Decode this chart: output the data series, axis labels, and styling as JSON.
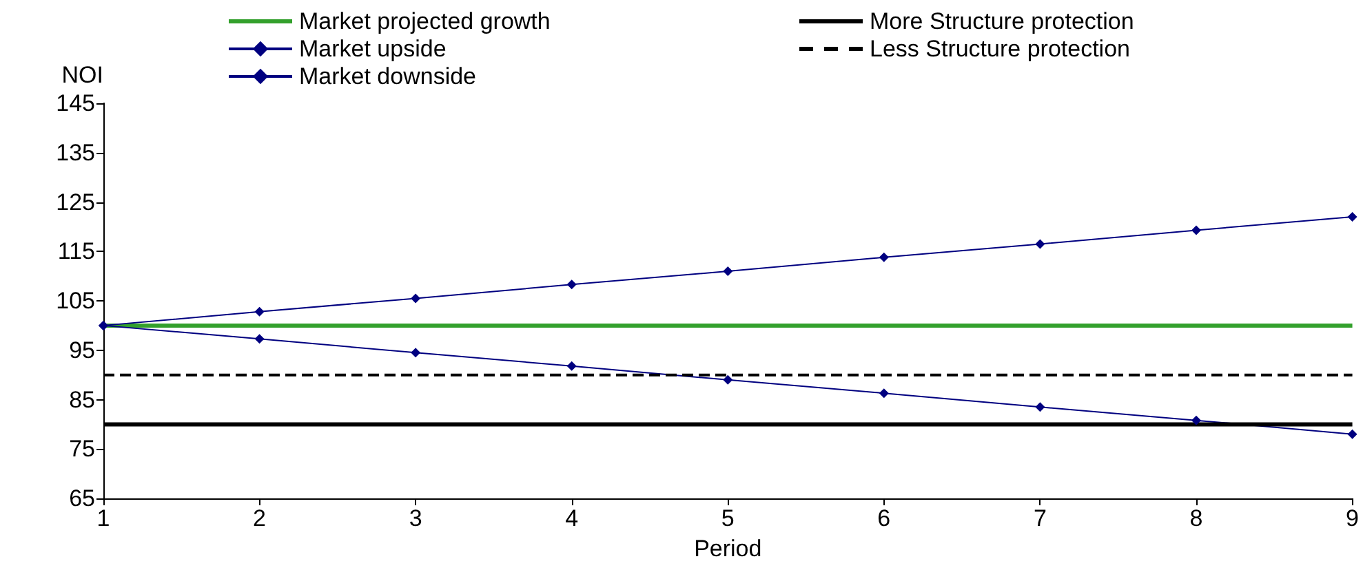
{
  "chart_data": {
    "type": "line",
    "xlabel": "Period",
    "ylabel": "NOI",
    "x": [
      1,
      2,
      3,
      4,
      5,
      6,
      7,
      8,
      9
    ],
    "series": [
      {
        "name": "Market projected growth",
        "color": "#33a02c",
        "values": [
          100,
          100,
          100,
          100,
          100,
          100,
          100,
          100,
          100
        ],
        "marker": "none",
        "line_style": "solid"
      },
      {
        "name": "Market upside",
        "color": "#000080",
        "values": [
          100,
          102.8,
          105.5,
          108.3,
          111,
          113.8,
          116.5,
          119.3,
          122
        ],
        "marker": "diamond",
        "line_style": "solid"
      },
      {
        "name": "Market downside",
        "color": "#000080",
        "values": [
          100,
          97.3,
          94.5,
          91.8,
          89,
          86.3,
          83.5,
          80.8,
          78
        ],
        "marker": "diamond",
        "line_style": "solid"
      },
      {
        "name": "More Structure protection",
        "color": "#000000",
        "values": [
          80,
          80,
          80,
          80,
          80,
          80,
          80,
          80,
          80
        ],
        "marker": "none",
        "line_style": "solid"
      },
      {
        "name": "Less Structure protection",
        "color": "#000000",
        "values": [
          90,
          90,
          90,
          90,
          90,
          90,
          90,
          90,
          90
        ],
        "marker": "none",
        "line_style": "dashed"
      }
    ],
    "xlim": [
      1,
      9
    ],
    "xticks": [
      1,
      2,
      3,
      4,
      5,
      6,
      7,
      8,
      9
    ],
    "ylim": [
      65,
      145
    ],
    "yticks": [
      65,
      75,
      85,
      95,
      105,
      115,
      125,
      135,
      145
    ],
    "grid": false,
    "legend": "top"
  }
}
